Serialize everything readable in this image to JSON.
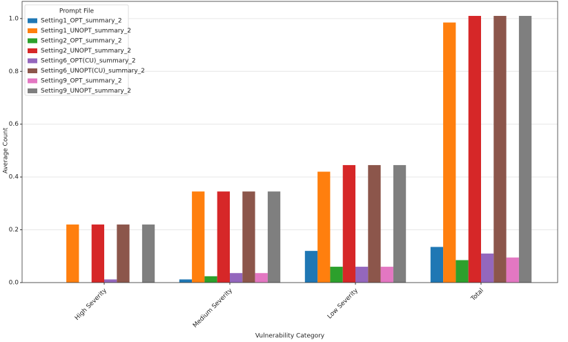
{
  "chart_data": {
    "type": "bar",
    "xlabel": "Vulnerability Category",
    "ylabel": "Average Count",
    "legend_title": "Prompt File",
    "legend_position": "upper left",
    "grid": true,
    "categories": [
      "High Severity",
      "Medium Severity",
      "Low Severity",
      "Total"
    ],
    "series": [
      {
        "name": "Setting1_OPT_summary_2",
        "color": "#1f77b4",
        "values": [
          0,
          0.012,
          0.12,
          0.135
        ]
      },
      {
        "name": "Setting1_UNOPT_summary_2",
        "color": "#ff7f0e",
        "values": [
          0.22,
          0.345,
          0.42,
          0.985
        ]
      },
      {
        "name": "Setting2_OPT_summary_2",
        "color": "#2ca02c",
        "values": [
          0,
          0.024,
          0.06,
          0.085
        ]
      },
      {
        "name": "Setting2_UNOPT_summary_2",
        "color": "#d62728",
        "values": [
          0.22,
          0.345,
          0.445,
          1.01
        ]
      },
      {
        "name": "Setting6_OPT(CU)_summary_2",
        "color": "#9467bd",
        "values": [
          0.012,
          0.036,
          0.06,
          0.11
        ]
      },
      {
        "name": "Setting6_UNOPT(CU)_summary_2",
        "color": "#8c564b",
        "values": [
          0.22,
          0.345,
          0.445,
          1.01
        ]
      },
      {
        "name": "Setting9_OPT_summary_2",
        "color": "#e377c2",
        "values": [
          0,
          0.036,
          0.06,
          0.095
        ]
      },
      {
        "name": "Setting9_UNOPT_summary_2",
        "color": "#7f7f7f",
        "values": [
          0.22,
          0.345,
          0.445,
          1.01
        ]
      }
    ],
    "ylim": [
      0,
      1.065
    ],
    "yticks": [
      {
        "value": 0,
        "label": "0.0"
      },
      0.2,
      0.4,
      0.6,
      0.8,
      {
        "value": 1,
        "label": "1.0"
      }
    ]
  }
}
